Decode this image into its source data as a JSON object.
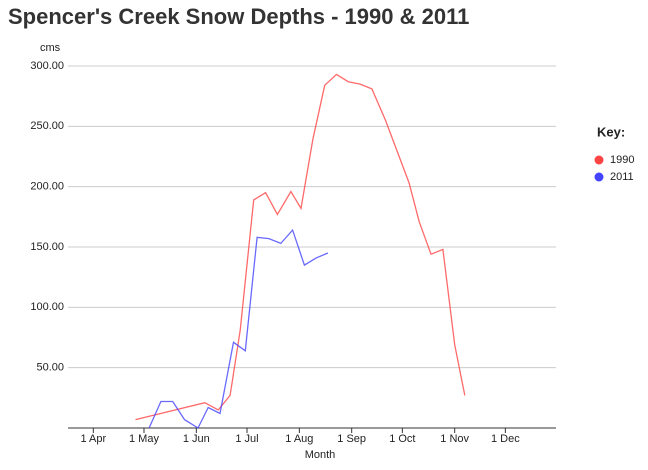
{
  "chart_data": {
    "type": "line",
    "title": "Spencer's Creek Snow Depths - 1990 & 2011",
    "y_label": "cms",
    "x_label": "Month",
    "legend_title": "Key:",
    "ylim": [
      0,
      300
    ],
    "yticks": [
      {
        "value": 50,
        "label": "50.00"
      },
      {
        "value": 100,
        "label": "100.00"
      },
      {
        "value": 150,
        "label": "150.00"
      },
      {
        "value": 200,
        "label": "200.00"
      },
      {
        "value": 250,
        "label": "250.00"
      },
      {
        "value": 300,
        "label": "300.00"
      }
    ],
    "xlim": [
      "17 Mar",
      "31 Dec"
    ],
    "xticks": [
      "1 Apr",
      "1 May",
      "1 Jun",
      "1 Jul",
      "1 Aug",
      "1 Sep",
      "1 Oct",
      "1 Nov",
      "1 Dec"
    ],
    "grid": true,
    "series": [
      {
        "name": "1990",
        "color": "#ff4444",
        "x": [
          "26 Apr",
          "6 Jun",
          "14 Jun",
          "21 Jun",
          "27 Jun",
          "5 Jul",
          "12 Jul",
          "19 Jul",
          "27 Jul",
          "2 Aug",
          "9 Aug",
          "16 Aug",
          "23 Aug",
          "30 Aug",
          "6 Sep",
          "13 Sep",
          "21 Sep",
          "5 Oct",
          "11 Oct",
          "18 Oct",
          "25 Oct",
          "1 Nov",
          "7 Nov"
        ],
        "values": [
          7,
          21,
          15,
          27,
          81,
          189,
          195,
          177,
          196,
          182,
          239,
          284,
          293,
          287,
          285,
          281,
          255,
          203,
          171,
          144,
          148,
          69,
          27
        ]
      },
      {
        "name": "2011",
        "color": "#4444ff",
        "x": [
          "4 May",
          "11 May",
          "18 May",
          "25 May",
          "2 Jun",
          "8 Jun",
          "15 Jun",
          "23 Jun",
          "30 Jun",
          "7 Jul",
          "14 Jul",
          "21 Jul",
          "28 Jul",
          "4 Aug",
          "11 Aug",
          "18 Aug"
        ],
        "values": [
          0,
          22,
          22,
          7,
          0,
          17,
          12,
          71,
          64,
          158,
          157,
          153,
          164,
          135,
          141,
          145
        ]
      }
    ]
  }
}
